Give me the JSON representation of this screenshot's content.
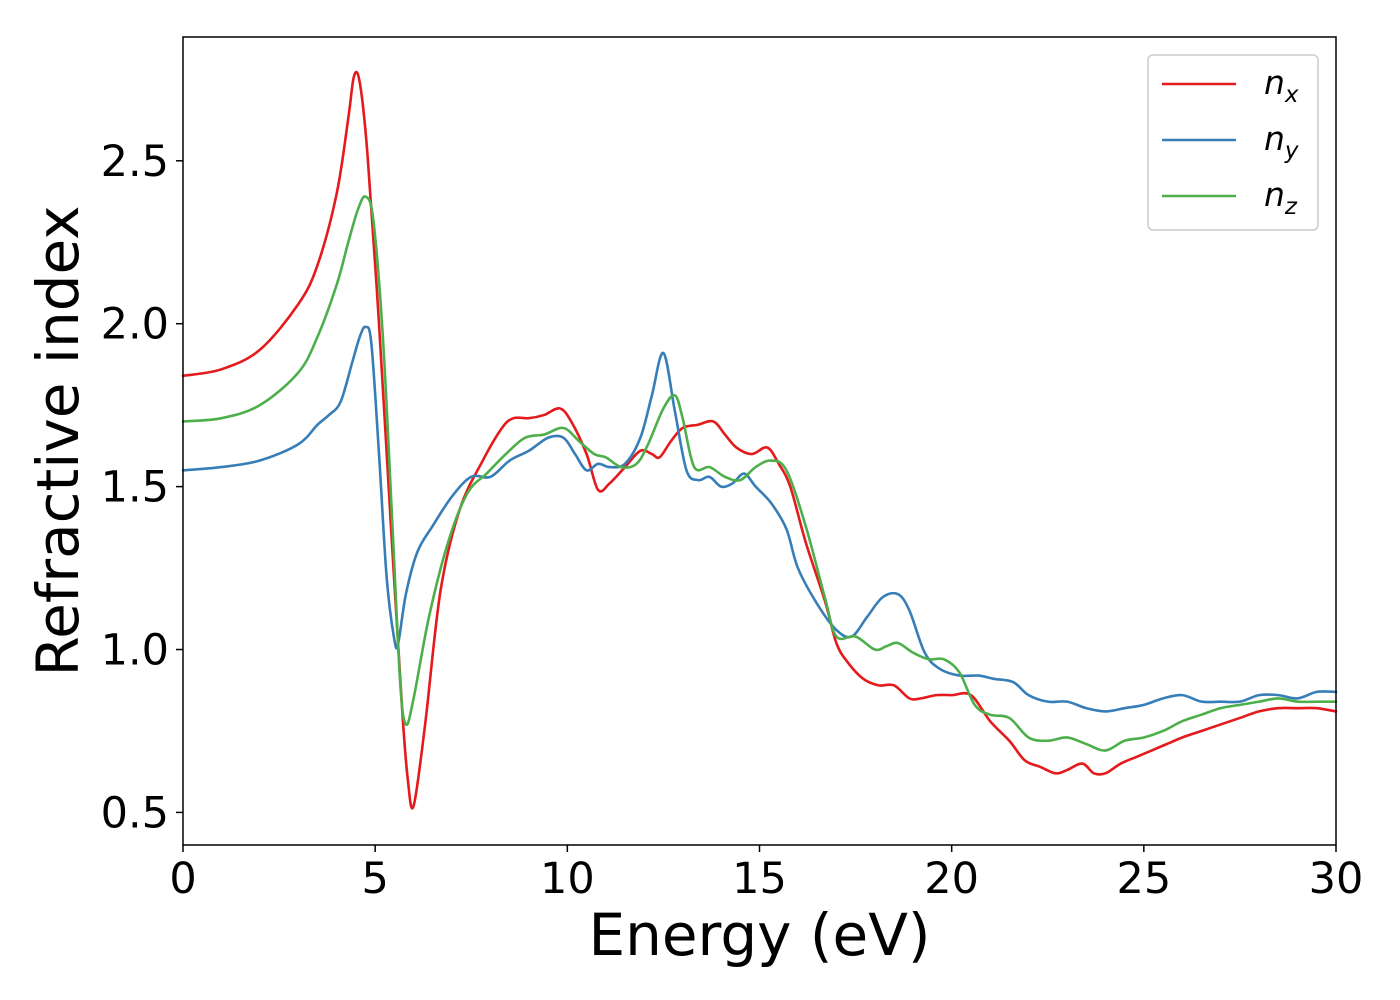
{
  "chart_data": {
    "type": "line",
    "title": "",
    "xlabel": "Energy (eV)",
    "ylabel": "Refractive index",
    "xlim": [
      0,
      30
    ],
    "ylim": [
      0.4,
      2.88
    ],
    "xticks": [
      0,
      5,
      10,
      15,
      20,
      25,
      30
    ],
    "xtick_labels": [
      "0",
      "5",
      "10",
      "15",
      "20",
      "25",
      "30"
    ],
    "yticks": [
      0.5,
      1.0,
      1.5,
      2.0,
      2.5
    ],
    "ytick_labels": [
      "0.5",
      "1.0",
      "1.5",
      "2.0",
      "2.5"
    ],
    "grid": false,
    "legend_position": "top-right",
    "series": [
      {
        "name": "n_x",
        "base": "n",
        "sub": "x",
        "color": "#e41a1c",
        "x": [
          0,
          1,
          2,
          3,
          3.5,
          4.0,
          4.3,
          4.45,
          4.6,
          4.8,
          5.1,
          5.4,
          5.7,
          5.85,
          6.0,
          6.3,
          6.7,
          7.2,
          7.8,
          8.3,
          8.6,
          9.0,
          9.4,
          9.8,
          10.1,
          10.5,
          10.8,
          11.1,
          11.5,
          11.9,
          12.2,
          12.4,
          12.7,
          13.0,
          13.4,
          13.8,
          14.1,
          14.4,
          14.8,
          15.2,
          15.5,
          15.8,
          16.2,
          16.7,
          17.0,
          17.3,
          17.7,
          18.1,
          18.5,
          18.9,
          19.2,
          19.6,
          20.0,
          20.5,
          21.0,
          21.5,
          21.9,
          22.3,
          22.7,
          23.0,
          23.4,
          23.7,
          24.0,
          24.4,
          24.8,
          25.2,
          25.6,
          26.0,
          26.5,
          27.0,
          27.5,
          28.0,
          28.5,
          29.0,
          29.5,
          30.0
        ],
        "y": [
          1.84,
          1.86,
          1.92,
          2.06,
          2.18,
          2.4,
          2.63,
          2.76,
          2.74,
          2.52,
          2.0,
          1.4,
          0.82,
          0.6,
          0.52,
          0.77,
          1.18,
          1.43,
          1.58,
          1.68,
          1.71,
          1.71,
          1.72,
          1.74,
          1.7,
          1.6,
          1.49,
          1.51,
          1.56,
          1.61,
          1.6,
          1.59,
          1.64,
          1.68,
          1.69,
          1.7,
          1.66,
          1.62,
          1.6,
          1.62,
          1.57,
          1.5,
          1.33,
          1.15,
          1.02,
          0.96,
          0.91,
          0.89,
          0.89,
          0.85,
          0.85,
          0.86,
          0.86,
          0.86,
          0.78,
          0.72,
          0.66,
          0.64,
          0.62,
          0.63,
          0.65,
          0.62,
          0.62,
          0.65,
          0.67,
          0.69,
          0.71,
          0.73,
          0.75,
          0.77,
          0.79,
          0.81,
          0.82,
          0.82,
          0.82,
          0.81
        ]
      },
      {
        "name": "n_y",
        "base": "n",
        "sub": "y",
        "color": "#377eb8",
        "x": [
          0,
          1,
          2,
          3,
          3.5,
          3.8,
          4.1,
          4.4,
          4.6,
          4.75,
          4.9,
          5.1,
          5.3,
          5.5,
          5.6,
          5.8,
          6.1,
          6.5,
          7.0,
          7.5,
          8.0,
          8.5,
          9.0,
          9.5,
          9.9,
          10.2,
          10.5,
          10.8,
          11.1,
          11.5,
          11.9,
          12.2,
          12.5,
          12.8,
          13.1,
          13.4,
          13.7,
          14.0,
          14.3,
          14.6,
          14.9,
          15.3,
          15.7,
          16.0,
          16.5,
          17.0,
          17.4,
          17.8,
          18.2,
          18.6,
          18.9,
          19.3,
          19.7,
          20.2,
          20.7,
          21.1,
          21.6,
          22.0,
          22.5,
          23.0,
          23.5,
          24.0,
          24.5,
          25.0,
          25.5,
          26.0,
          26.5,
          27.0,
          27.5,
          28.0,
          28.5,
          29.0,
          29.5,
          30.0
        ],
        "y": [
          1.55,
          1.56,
          1.58,
          1.63,
          1.69,
          1.72,
          1.76,
          1.88,
          1.96,
          1.99,
          1.94,
          1.6,
          1.22,
          1.03,
          1.02,
          1.17,
          1.3,
          1.38,
          1.47,
          1.53,
          1.53,
          1.58,
          1.61,
          1.65,
          1.65,
          1.6,
          1.55,
          1.57,
          1.56,
          1.57,
          1.65,
          1.78,
          1.91,
          1.73,
          1.55,
          1.52,
          1.53,
          1.5,
          1.51,
          1.54,
          1.5,
          1.45,
          1.37,
          1.25,
          1.14,
          1.06,
          1.04,
          1.1,
          1.16,
          1.17,
          1.12,
          0.99,
          0.94,
          0.92,
          0.92,
          0.91,
          0.9,
          0.86,
          0.84,
          0.84,
          0.82,
          0.81,
          0.82,
          0.83,
          0.85,
          0.86,
          0.84,
          0.84,
          0.84,
          0.86,
          0.86,
          0.85,
          0.87,
          0.87
        ]
      },
      {
        "name": "n_z",
        "base": "n",
        "sub": "z",
        "color": "#4daf4a",
        "x": [
          0,
          1,
          2,
          3,
          3.5,
          4.0,
          4.3,
          4.55,
          4.75,
          4.95,
          5.2,
          5.45,
          5.65,
          5.8,
          6.0,
          6.4,
          6.9,
          7.4,
          7.9,
          8.4,
          8.9,
          9.4,
          9.9,
          10.3,
          10.7,
          11.0,
          11.4,
          11.8,
          12.1,
          12.5,
          12.8,
          13.0,
          13.3,
          13.7,
          14.1,
          14.5,
          14.9,
          15.3,
          15.7,
          16.2,
          16.7,
          17.0,
          17.5,
          18.0,
          18.3,
          18.6,
          19.0,
          19.4,
          19.8,
          20.2,
          20.6,
          21.0,
          21.5,
          22.0,
          22.5,
          23.0,
          23.5,
          24.0,
          24.5,
          25.0,
          25.5,
          26.0,
          26.5,
          27.0,
          27.5,
          28.0,
          28.5,
          29.0,
          29.5,
          30.0
        ],
        "y": [
          1.7,
          1.71,
          1.75,
          1.85,
          1.96,
          2.12,
          2.25,
          2.35,
          2.39,
          2.32,
          1.96,
          1.38,
          0.9,
          0.77,
          0.85,
          1.1,
          1.33,
          1.48,
          1.54,
          1.6,
          1.65,
          1.66,
          1.68,
          1.64,
          1.6,
          1.59,
          1.56,
          1.57,
          1.63,
          1.74,
          1.78,
          1.71,
          1.56,
          1.56,
          1.53,
          1.52,
          1.56,
          1.58,
          1.55,
          1.38,
          1.16,
          1.04,
          1.04,
          1.0,
          1.01,
          1.02,
          0.99,
          0.97,
          0.97,
          0.93,
          0.83,
          0.8,
          0.79,
          0.73,
          0.72,
          0.73,
          0.71,
          0.69,
          0.72,
          0.73,
          0.75,
          0.78,
          0.8,
          0.82,
          0.83,
          0.84,
          0.85,
          0.84,
          0.84,
          0.84
        ]
      }
    ]
  }
}
